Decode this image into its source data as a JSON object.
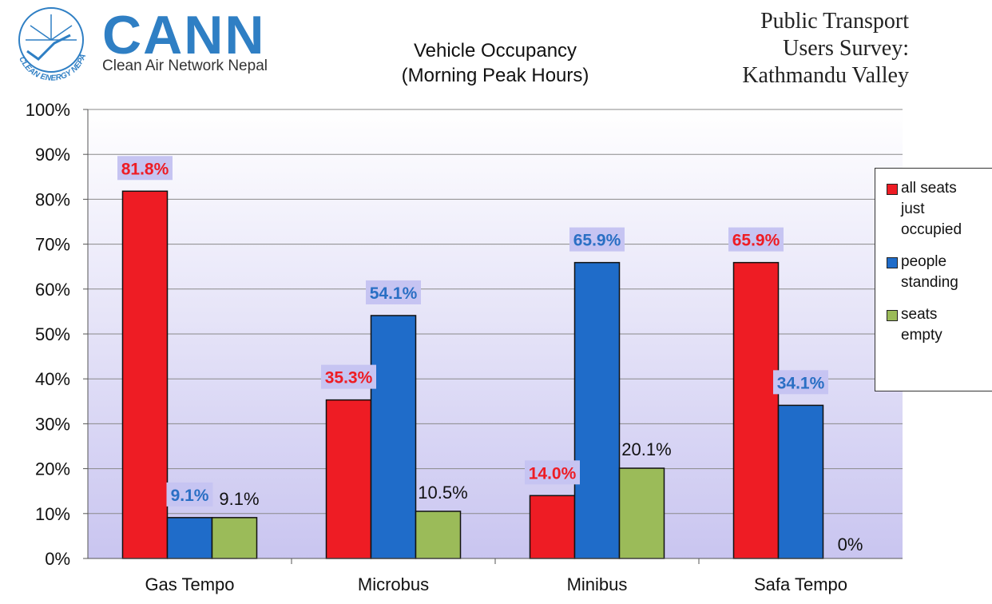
{
  "logo": {
    "org_name": "CANN",
    "org_subtitle": "Clean Air Network Nepal",
    "emblem_text": "CLEAN ENERGY NEPAL"
  },
  "header": {
    "chart_title_line1": "Vehicle Occupancy",
    "chart_title_line2": "(Morning Peak Hours)",
    "survey_line1": "Public Transport",
    "survey_line2": "Users Survey:",
    "survey_line3": "Kathmandu Valley"
  },
  "legend": {
    "items": [
      {
        "label": "all seats just occupied",
        "color": "#ee1c24"
      },
      {
        "label": "people standing",
        "color": "#1f6cc9"
      },
      {
        "label": "seats empty",
        "color": "#9bbb59"
      }
    ]
  },
  "chart_data": {
    "type": "bar",
    "categories": [
      "Gas Tempo",
      "Microbus",
      "Minibus",
      "Safa Tempo"
    ],
    "series": [
      {
        "name": "all seats just occupied",
        "values": [
          81.8,
          35.3,
          14.0,
          65.9
        ],
        "labels": [
          "81.8%",
          "35.3%",
          "14.0%",
          "65.9%"
        ],
        "color": "#ee1c24",
        "label_color": "#ee1c24"
      },
      {
        "name": "people standing",
        "values": [
          9.1,
          54.1,
          65.9,
          34.1
        ],
        "labels": [
          "9.1%",
          "54.1%",
          "65.9%",
          "34.1%"
        ],
        "color": "#1f6cc9",
        "label_color": "#2a6fc4"
      },
      {
        "name": "seats empty",
        "values": [
          9.1,
          10.5,
          20.1,
          0
        ],
        "labels": [
          "9.1%",
          "10.5%",
          "20.1%",
          "0%"
        ],
        "color": "#9bbb59",
        "label_color": "#111111"
      }
    ],
    "y_ticks": [
      "0%",
      "10%",
      "20%",
      "30%",
      "40%",
      "50%",
      "60%",
      "70%",
      "80%",
      "90%",
      "100%"
    ],
    "ylim": [
      0,
      100
    ],
    "grid": true,
    "legend_position": "right",
    "plot_background": "gradient white to lavender"
  }
}
